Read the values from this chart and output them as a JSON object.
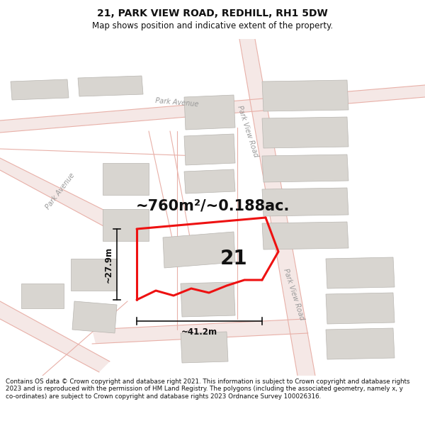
{
  "title": "21, PARK VIEW ROAD, REDHILL, RH1 5DW",
  "subtitle": "Map shows position and indicative extent of the property.",
  "footer": "Contains OS data © Crown copyright and database right 2021. This information is subject to Crown copyright and database rights 2023 and is reproduced with the permission of HM Land Registry. The polygons (including the associated geometry, namely x, y co-ordinates) are subject to Crown copyright and database rights 2023 Ordnance Survey 100026316.",
  "area_label": "~760m²/~0.188ac.",
  "number_label": "21",
  "dim_width": "~41.2m",
  "dim_height": "~27.9m",
  "bg_color": "#ffffff",
  "map_bg": "#f8f7f5",
  "road_line_color": "#e8b0a8",
  "road_fill_color": "#f5e8e6",
  "road_edge_color": "#c8888080",
  "plot_fill": "none",
  "plot_outline": "#ee1111",
  "building_fill": "#d8d5d0",
  "building_edge": "#b8b5b0",
  "dim_color": "#111111",
  "label_color": "#999999",
  "title_fontsize": 10,
  "subtitle_fontsize": 8.5,
  "footer_fontsize": 6.3,
  "area_fontsize": 15,
  "number_fontsize": 20,
  "plot_lw": 2.2
}
